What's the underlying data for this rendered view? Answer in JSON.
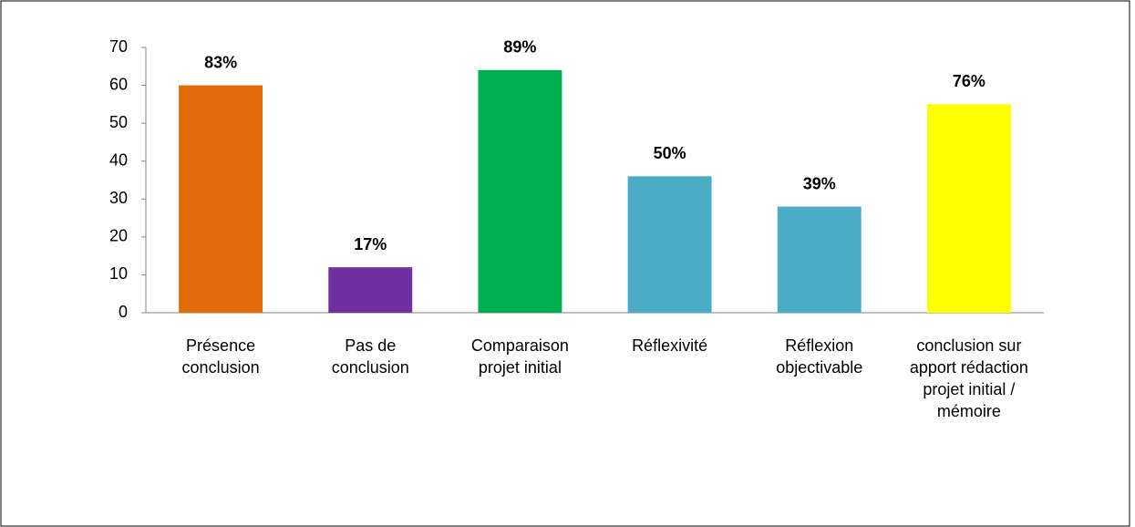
{
  "chart_data": {
    "type": "bar",
    "categories": [
      "Présence conclusion",
      "Pas de conclusion",
      "Comparaison projet initial",
      "Réflexivité",
      "Réflexion objectivable",
      "conclusion sur apport rédaction projet initial / mémoire"
    ],
    "values": [
      60,
      12,
      64,
      36,
      28,
      55
    ],
    "annotations": [
      "83%",
      "17%",
      "89%",
      "50%",
      "39%",
      "76%"
    ],
    "colors": [
      "#e36c0a",
      "#7030a0",
      "#00b050",
      "#4bacc6",
      "#4bacc6",
      "#ffff00"
    ],
    "ylim": [
      0,
      70
    ],
    "yticks": [
      0,
      10,
      20,
      30,
      40,
      50,
      60,
      70
    ],
    "grid": false
  }
}
